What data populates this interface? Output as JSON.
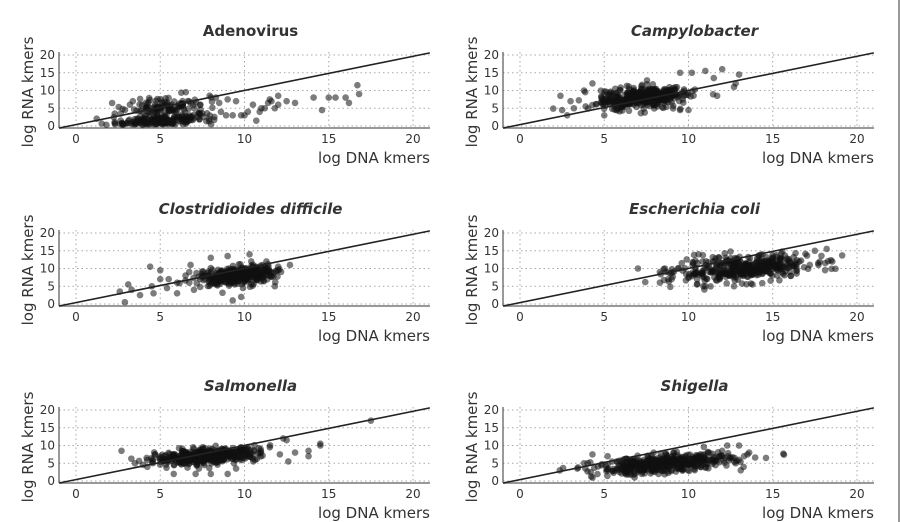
{
  "figure": {
    "description": "Six scatter panels of log RNA kmers vs log DNA kmers, each with a y=x reference line"
  },
  "chart_data": [
    {
      "type": "scatter",
      "title": "Adenovirus",
      "title_italic": false,
      "xlabel": "log DNA kmers",
      "ylabel": "log RNA kmers",
      "xlim": [
        -1,
        21
      ],
      "ylim": [
        0,
        21
      ],
      "xticks": [
        "0",
        "5",
        "10",
        "15",
        "20"
      ],
      "yticks": [
        "0",
        "5",
        "10",
        "15",
        "20"
      ],
      "grid": true,
      "reference_line": "y = x",
      "approximate": true,
      "clusters": [
        {
          "cx": 5.2,
          "cy": 1.5,
          "sx": 1.4,
          "sy": 0.9,
          "n": 180
        },
        {
          "cx": 5.3,
          "cy": 5.5,
          "sx": 1.2,
          "sy": 1.3,
          "n": 110
        }
      ],
      "points": [
        [
          8.3,
          8
        ],
        [
          8.5,
          6.5
        ],
        [
          8.6,
          4
        ],
        [
          9,
          7.5
        ],
        [
          9.3,
          3
        ],
        [
          9.5,
          7
        ],
        [
          9.8,
          3
        ],
        [
          10,
          3
        ],
        [
          10.2,
          4
        ],
        [
          10.5,
          6
        ],
        [
          10.7,
          1.5
        ],
        [
          10.9,
          4
        ],
        [
          11,
          5
        ],
        [
          11.2,
          5
        ],
        [
          11.4,
          6.5
        ],
        [
          11.5,
          7.5
        ],
        [
          11.6,
          7
        ],
        [
          11.8,
          5
        ],
        [
          12,
          8.5
        ],
        [
          12,
          6
        ],
        [
          12.5,
          7
        ],
        [
          13,
          6.5
        ],
        [
          14.1,
          8
        ],
        [
          14.6,
          4.5
        ],
        [
          15,
          8
        ],
        [
          15.4,
          8
        ],
        [
          16,
          8
        ],
        [
          16.2,
          6.5
        ],
        [
          16.7,
          11.5
        ],
        [
          16.8,
          9
        ],
        [
          2.3,
          3.5
        ],
        [
          2.3,
          0.8
        ],
        [
          3.2,
          6
        ]
      ]
    },
    {
      "type": "scatter",
      "title": "Campylobacter",
      "title_italic": true,
      "xlabel": "log DNA kmers",
      "ylabel": "log RNA kmers",
      "xlim": [
        -1,
        21
      ],
      "ylim": [
        0,
        21
      ],
      "xticks": [
        "0",
        "5",
        "10",
        "15",
        "20"
      ],
      "yticks": [
        "0",
        "5",
        "10",
        "15",
        "20"
      ],
      "grid": true,
      "reference_line": "y = x",
      "approximate": true,
      "clusters": [
        {
          "cx": 7.2,
          "cy": 8,
          "sx": 1.3,
          "sy": 1.5,
          "n": 420
        }
      ],
      "points": [
        [
          2.4,
          8.5
        ],
        [
          2.5,
          4.5
        ],
        [
          2.8,
          3
        ],
        [
          3,
          7
        ],
        [
          3.2,
          5
        ],
        [
          3.8,
          10
        ],
        [
          4.3,
          12
        ],
        [
          5,
          3
        ],
        [
          9.5,
          15
        ],
        [
          10.2,
          15
        ],
        [
          11,
          15.5
        ],
        [
          11.5,
          13.5
        ],
        [
          11.7,
          8.5
        ],
        [
          12,
          16
        ],
        [
          12.7,
          11
        ],
        [
          12.8,
          12
        ],
        [
          13,
          14.5
        ],
        [
          9.5,
          4.5
        ],
        [
          10,
          4.5
        ]
      ]
    },
    {
      "type": "scatter",
      "title": "Clostridioides difficile",
      "title_italic": true,
      "xlabel": "log DNA kmers",
      "ylabel": "log RNA kmers",
      "xlim": [
        -1,
        21
      ],
      "ylim": [
        0,
        21
      ],
      "xticks": [
        "0",
        "5",
        "10",
        "15",
        "20"
      ],
      "yticks": [
        "0",
        "5",
        "10",
        "15",
        "20"
      ],
      "grid": true,
      "reference_line": "y = x",
      "approximate": true,
      "clusters": [
        {
          "cx": 9.6,
          "cy": 8,
          "sx": 1.1,
          "sy": 1.2,
          "n": 380
        }
      ],
      "points": [
        [
          2.6,
          3.5
        ],
        [
          2.9,
          0.5
        ],
        [
          3.1,
          5.5
        ],
        [
          3.3,
          4
        ],
        [
          3.8,
          2.5
        ],
        [
          4.4,
          10.5
        ],
        [
          4.5,
          5
        ],
        [
          4.6,
          3
        ],
        [
          5,
          7
        ],
        [
          5,
          9.5
        ],
        [
          5.4,
          4.5
        ],
        [
          5.5,
          7
        ],
        [
          6,
          6
        ],
        [
          6,
          3
        ],
        [
          6.5,
          8
        ],
        [
          6.8,
          11
        ],
        [
          7,
          4
        ],
        [
          8,
          13
        ],
        [
          9,
          13.5
        ],
        [
          10.3,
          14
        ],
        [
          10.4,
          12
        ],
        [
          11.3,
          12
        ],
        [
          11.8,
          5
        ],
        [
          12,
          10.5
        ],
        [
          12.7,
          11
        ],
        [
          9.3,
          1
        ],
        [
          9.8,
          2
        ]
      ]
    },
    {
      "type": "scatter",
      "title": "Escherichia coli",
      "title_italic": true,
      "xlabel": "log DNA kmers",
      "ylabel": "log RNA kmers",
      "xlim": [
        -1,
        21
      ],
      "ylim": [
        0,
        21
      ],
      "xticks": [
        "0",
        "5",
        "10",
        "15",
        "20"
      ],
      "yticks": [
        "0",
        "5",
        "10",
        "15",
        "20"
      ],
      "grid": true,
      "reference_line": "y = x",
      "approximate": true,
      "clusters": [
        {
          "cx": 13.3,
          "cy": 10,
          "sx": 2.0,
          "sy": 1.7,
          "n": 420
        }
      ],
      "points": [
        [
          7,
          10
        ],
        [
          8.3,
          9
        ],
        [
          8.6,
          10
        ],
        [
          8.8,
          7
        ],
        [
          9,
          7
        ],
        [
          9.4,
          10
        ],
        [
          9.6,
          11.5
        ],
        [
          10.6,
          14
        ],
        [
          10.5,
          5.5
        ],
        [
          11,
          5
        ],
        [
          12.7,
          5
        ],
        [
          13.8,
          5.5
        ],
        [
          17.5,
          15
        ],
        [
          17.7,
          11.5
        ],
        [
          18.2,
          15.5
        ],
        [
          17.2,
          11
        ],
        [
          12.2,
          13
        ]
      ]
    },
    {
      "type": "scatter",
      "title": "Salmonella",
      "title_italic": true,
      "xlabel": "log DNA kmers",
      "ylabel": "log RNA kmers",
      "xlim": [
        -1,
        21
      ],
      "ylim": [
        0,
        21
      ],
      "xticks": [
        "0",
        "5",
        "10",
        "15",
        "20"
      ],
      "yticks": [
        "0",
        "5",
        "10",
        "15",
        "20"
      ],
      "grid": true,
      "reference_line": "y = x",
      "approximate": true,
      "clusters": [
        {
          "cx": 7.8,
          "cy": 7,
          "sx": 1.5,
          "sy": 1.0,
          "n": 480
        }
      ],
      "points": [
        [
          2.7,
          8.5
        ],
        [
          3.5,
          5
        ],
        [
          4.7,
          7.5
        ],
        [
          5.8,
          2
        ],
        [
          7.1,
          2
        ],
        [
          8,
          2
        ],
        [
          9,
          2
        ],
        [
          9.5,
          3.5
        ],
        [
          11.5,
          9.5
        ],
        [
          12.3,
          12
        ],
        [
          12.5,
          11.5
        ],
        [
          12.6,
          5.5
        ],
        [
          13,
          8
        ],
        [
          13.8,
          8.5
        ],
        [
          13.8,
          7
        ],
        [
          14.5,
          10.5
        ],
        [
          14.5,
          10
        ],
        [
          17.5,
          17
        ],
        [
          12.1,
          7.5
        ]
      ]
    },
    {
      "type": "scatter",
      "title": "Shigella",
      "title_italic": true,
      "xlabel": "log DNA kmers",
      "ylabel": "log RNA kmers",
      "xlim": [
        -1,
        21
      ],
      "ylim": [
        0,
        21
      ],
      "xticks": [
        "0",
        "5",
        "10",
        "15",
        "20"
      ],
      "yticks": [
        "0",
        "5",
        "10",
        "15",
        "20"
      ],
      "grid": true,
      "reference_line": "y = x",
      "approximate": true,
      "clusters": [
        {
          "cx": 8.5,
          "cy": 4.8,
          "sx": 2.0,
          "sy": 1.2,
          "n": 480
        }
      ],
      "points": [
        [
          3.8,
          5
        ],
        [
          4.2,
          2.5
        ],
        [
          4.3,
          7.5
        ],
        [
          5.2,
          7
        ],
        [
          6.8,
          1
        ],
        [
          12.3,
          10
        ],
        [
          13,
          10
        ],
        [
          13.1,
          3
        ],
        [
          13.3,
          7
        ],
        [
          13.5,
          7.5
        ],
        [
          13.6,
          8
        ],
        [
          14.6,
          6.5
        ],
        [
          12.8,
          5
        ],
        [
          12,
          8.5
        ]
      ]
    }
  ]
}
